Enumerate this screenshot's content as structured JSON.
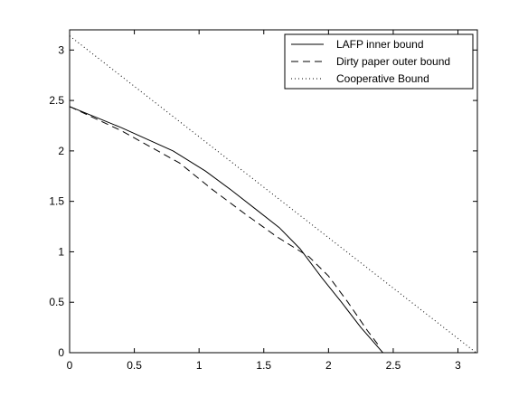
{
  "chart_data": {
    "type": "line",
    "title": "",
    "xlabel": "",
    "ylabel": "",
    "xlim": [
      0,
      3.15
    ],
    "ylim": [
      0,
      3.2
    ],
    "x_ticks": [
      0,
      0.5,
      1,
      1.5,
      2,
      2.5,
      3
    ],
    "x_tick_labels": [
      "0",
      "0.5",
      "1",
      "1.5",
      "2",
      "2.5",
      "3"
    ],
    "y_ticks": [
      0,
      0.5,
      1,
      1.5,
      2,
      2.5,
      3
    ],
    "y_tick_labels": [
      "0",
      "0.5",
      "1",
      "1.5",
      "2",
      "2.5",
      "3"
    ],
    "grid": false,
    "legend_position": "top-right",
    "series": [
      {
        "name": "LAFP inner bound",
        "style": "solid",
        "x": [
          0,
          0.4,
          0.8,
          1.05,
          1.25,
          1.45,
          1.62,
          1.78,
          1.95,
          2.1,
          2.25,
          2.42
        ],
        "y": [
          2.44,
          2.23,
          2.0,
          1.8,
          1.61,
          1.41,
          1.24,
          1.03,
          0.74,
          0.5,
          0.25,
          0.0
        ]
      },
      {
        "name": "Dirty paper outer bound",
        "style": "dashed",
        "x": [
          0,
          0.4,
          0.85,
          1.1,
          1.35,
          1.6,
          1.85,
          2.0,
          2.15,
          2.3,
          2.4
        ],
        "y": [
          2.44,
          2.2,
          1.88,
          1.62,
          1.38,
          1.15,
          0.95,
          0.76,
          0.5,
          0.22,
          0.05
        ]
      },
      {
        "name": "Cooperative Bound",
        "style": "dotted",
        "x": [
          0,
          3.14
        ],
        "y": [
          3.14,
          0
        ]
      }
    ]
  },
  "colors": {
    "line": "#000000",
    "background": "#ffffff"
  }
}
